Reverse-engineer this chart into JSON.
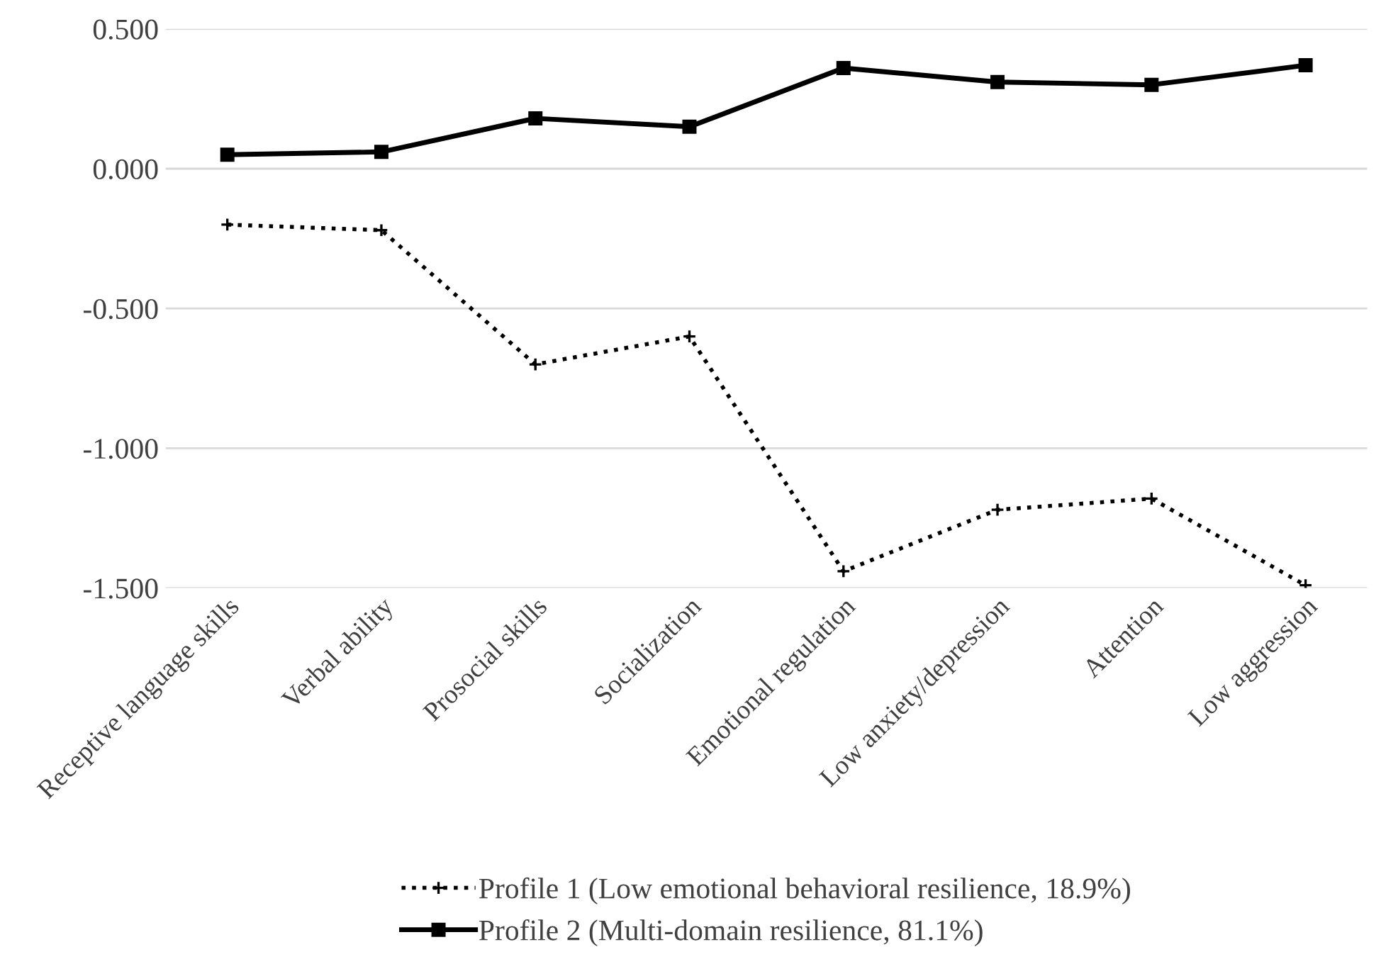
{
  "chart_data": {
    "type": "line",
    "categories": [
      "Receptive language skills",
      "Verbal ability",
      "Prosocial skills",
      "Socialization",
      "Emotional regulation",
      "Low anxiety/depression",
      "Attention",
      "Low aggression"
    ],
    "series": [
      {
        "name": "Profile 1 (Low emotional behavioral resilience, 18.9%)",
        "color": "#000000",
        "line_style": "dotted",
        "marker": "cross",
        "values": [
          -0.2,
          -0.22,
          -0.7,
          -0.6,
          -1.44,
          -1.22,
          -1.18,
          -1.49
        ]
      },
      {
        "name": "Profile 2 (Multi-domain resilience, 81.1%)",
        "color": "#000000",
        "line_style": "solid",
        "marker": "square",
        "values": [
          0.05,
          0.06,
          0.18,
          0.15,
          0.36,
          0.31,
          0.3,
          0.37
        ]
      }
    ],
    "ylim": [
      -1.5,
      0.5
    ],
    "yticks": [
      {
        "value": -1.5,
        "label": "-1.500"
      },
      {
        "value": -1.0,
        "label": "-1.000"
      },
      {
        "value": -0.5,
        "label": "-0.500"
      },
      {
        "value": 0,
        "label": "0.000"
      },
      {
        "value": 0.5,
        "label": "0.500"
      }
    ],
    "grid": "y",
    "legend": "bottom"
  }
}
